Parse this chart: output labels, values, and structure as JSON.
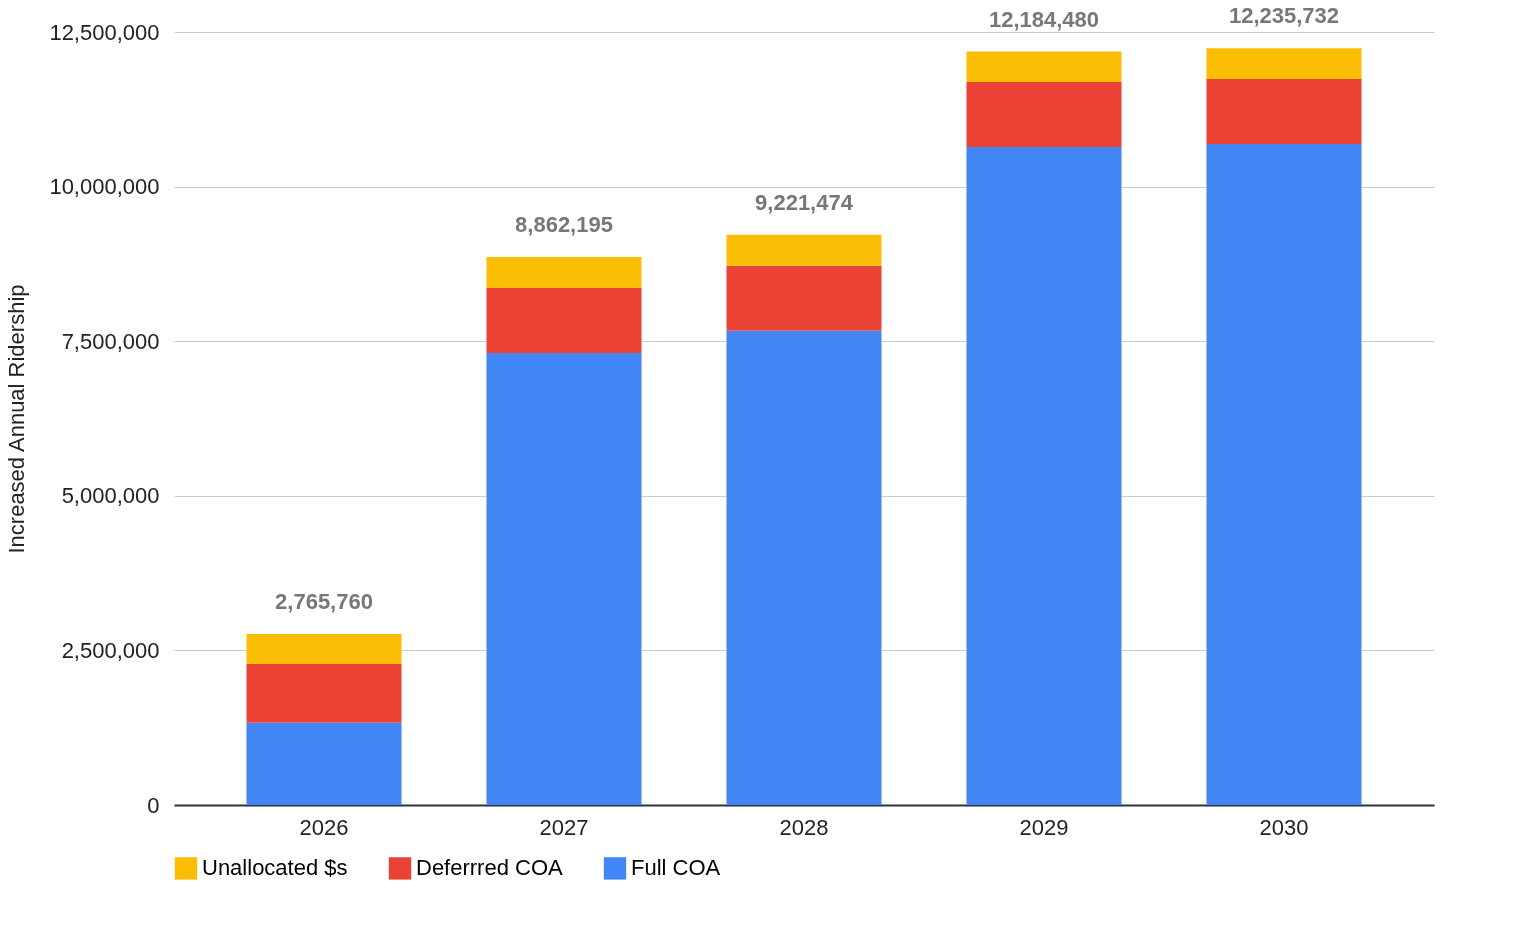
{
  "chart_data": {
    "type": "bar",
    "stacked": true,
    "ylabel": "Increased Annual Ridership",
    "categories": [
      "2026",
      "2027",
      "2028",
      "2029",
      "2030"
    ],
    "series": [
      {
        "name": "Full COA",
        "color": "#4285f4",
        "values": [
          1330000,
          7310000,
          7670000,
          10640000,
          10690000
        ]
      },
      {
        "name": "Deferrred COA",
        "color": "#ea4335",
        "values": [
          950000,
          1050000,
          1050000,
          1050000,
          1050000
        ]
      },
      {
        "name": "Unallocated $s",
        "color": "#fbbc04",
        "values": [
          485760,
          502195,
          501474,
          494480,
          495732
        ]
      }
    ],
    "totals": [
      "2,765,760",
      "8,862,195",
      "9,221,474",
      "12,184,480",
      "12,235,732"
    ],
    "ylim": [
      0,
      12500000
    ],
    "yticks": [
      0,
      {
        "value": 2500000,
        "label": "2,500,000"
      },
      {
        "value": 5000000,
        "label": "5,000,000"
      },
      {
        "value": 7500000,
        "label": "7,500,000"
      },
      {
        "value": 10000000,
        "label": "10,000,000"
      },
      {
        "value": 12500000,
        "label": "12,500,000"
      }
    ],
    "grid": "y",
    "legend": "bottom"
  }
}
